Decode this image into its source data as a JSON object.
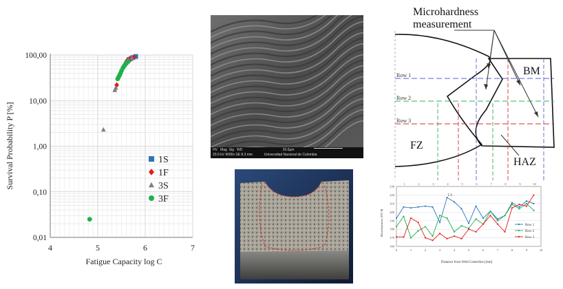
{
  "chart_data": [
    {
      "type": "scatter",
      "title": "",
      "xlabel": "Fatigue Capacity log C",
      "ylabel": "Survival Probability P [%]",
      "xlim": [
        4,
        7
      ],
      "ylim": [
        0.01,
        100
      ],
      "yscale": "log",
      "x_ticks": [
        "4",
        "5",
        "6",
        "7"
      ],
      "y_ticks": [
        "0,01",
        "0,10",
        "1,00",
        "10,00",
        "100,00"
      ],
      "y_tick_values": [
        0.01,
        0.1,
        1,
        10,
        100
      ],
      "grid": true,
      "legend_position": "bottom-right",
      "series": [
        {
          "name": "1S",
          "marker": "square",
          "color": "#2e75b6",
          "points": [
            [
              5.8,
              93
            ],
            [
              5.74,
              88
            ],
            [
              5.7,
              84
            ],
            [
              5.66,
              80
            ]
          ]
        },
        {
          "name": "1F",
          "marker": "diamond",
          "color": "#e31a1c",
          "points": [
            [
              5.76,
              90
            ],
            [
              5.68,
              82
            ],
            [
              5.62,
              76
            ],
            [
              5.4,
              22
            ]
          ]
        },
        {
          "name": "3S",
          "marker": "triangle",
          "color": "#7f7f7f",
          "points": [
            [
              5.12,
              2.3
            ],
            [
              5.36,
              17
            ],
            [
              5.38,
              19
            ],
            [
              5.58,
              70
            ],
            [
              5.64,
              78
            ],
            [
              5.72,
              86
            ]
          ]
        },
        {
          "name": "3F",
          "marker": "circle",
          "color": "#21b04b",
          "points": [
            [
              4.83,
              0.025
            ],
            [
              5.42,
              30
            ],
            [
              5.44,
              33
            ],
            [
              5.46,
              36
            ],
            [
              5.48,
              40
            ],
            [
              5.5,
              45
            ],
            [
              5.53,
              52
            ],
            [
              5.56,
              58
            ],
            [
              5.6,
              65
            ],
            [
              5.64,
              72
            ]
          ]
        }
      ]
    },
    {
      "type": "line",
      "title": "",
      "xlabel": "Distance from Weld Centerline [mm]",
      "ylabel": "Microhardness [HV 0]",
      "xlim": [
        0,
        10
      ],
      "ylim": [
        160,
        230
      ],
      "x_ticks": [
        "0",
        "1",
        "2",
        "3",
        "4",
        "5",
        "6",
        "7",
        "8",
        "9",
        "10"
      ],
      "y_ticks": [
        "160",
        "170",
        "180",
        "190",
        "200",
        "210",
        "220",
        "230"
      ],
      "top_ticks": [
        "1",
        "2",
        "3",
        "4",
        "5",
        "6",
        "7",
        "8",
        "9",
        "10"
      ],
      "zone_label": "1A",
      "legend_position": "bottom-right",
      "series": [
        {
          "name": "Row 1",
          "color": "#2e75b6",
          "x": [
            0,
            0.5,
            1,
            1.5,
            2,
            2.5,
            3,
            3.5,
            4,
            4.5,
            5,
            5.5,
            6,
            6.5,
            7,
            7.5,
            8,
            8.5,
            9,
            9.5
          ],
          "values": [
            193,
            206,
            205,
            206,
            207,
            206,
            188,
            217,
            212,
            204,
            187,
            207,
            193,
            201,
            192,
            196,
            211,
            206,
            213,
            210
          ]
        },
        {
          "name": "Row 2",
          "color": "#21b04b",
          "x": [
            0,
            0.5,
            1,
            1.5,
            2,
            2.5,
            3,
            3.5,
            4,
            4.5,
            5,
            5.5,
            6,
            6.5,
            7,
            7.5,
            8,
            8.5,
            9,
            9.5
          ],
          "values": [
            183,
            195,
            170,
            178,
            183,
            172,
            196,
            193,
            177,
            184,
            181,
            192,
            186,
            201,
            190,
            196,
            209,
            204,
            210,
            202
          ]
        },
        {
          "name": "Row 3",
          "color": "#e31a1c",
          "x": [
            0,
            0.5,
            1,
            1.5,
            2,
            2.5,
            3,
            3.5,
            4,
            4.5,
            5,
            5.5,
            6,
            6.5,
            7,
            7.5,
            8,
            8.5,
            9,
            9.5
          ],
          "values": [
            171,
            171,
            193,
            188,
            170,
            167,
            175,
            169,
            172,
            169,
            180,
            177,
            186,
            196,
            186,
            177,
            205,
            209,
            207,
            220
          ]
        }
      ]
    }
  ],
  "sem": {
    "footer_line1": "HV   Mag  Sig   WD                                          20.0µm",
    "footer_line2": "20.0 kV 9000x SE 8.3 mm            Universidad Nacional de Colombia"
  },
  "diagram": {
    "microhardness_label_line1": "Microhardness",
    "microhardness_label_line2": "measurement",
    "bm_label": "BM",
    "fz_label": "FZ",
    "haz_label": "HAZ",
    "row1_label": "Row 1",
    "row2_label": "Row 2",
    "row3_label": "Row 3"
  }
}
